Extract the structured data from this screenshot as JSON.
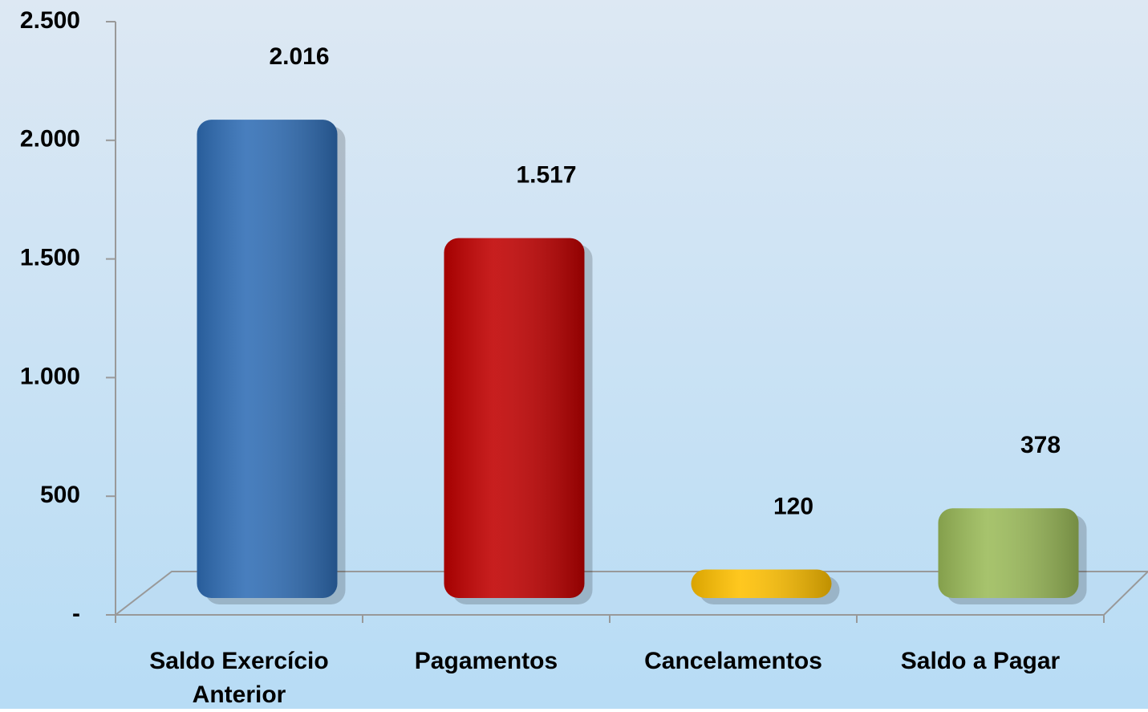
{
  "chart_data": {
    "type": "bar",
    "categories": [
      "Saldo Exercício Anterior",
      "Pagamentos",
      "Cancelamentos",
      "Saldo a Pagar"
    ],
    "values": [
      2016,
      1517,
      120,
      378
    ],
    "value_labels": [
      "2.016",
      "1.517",
      "120",
      "378"
    ],
    "colors": [
      "#2f6db5",
      "#c00000",
      "#ffc000",
      "#9bbb59"
    ],
    "ylim": [
      0,
      2500
    ],
    "yticks": [
      {
        "value": 0,
        "label": "-"
      },
      500,
      {
        "value": 1000,
        "label": "1.000"
      },
      {
        "value": 1500,
        "label": "1.500"
      },
      {
        "value": 2000,
        "label": "2.000"
      },
      {
        "value": 2500,
        "label": "2.500"
      }
    ]
  }
}
